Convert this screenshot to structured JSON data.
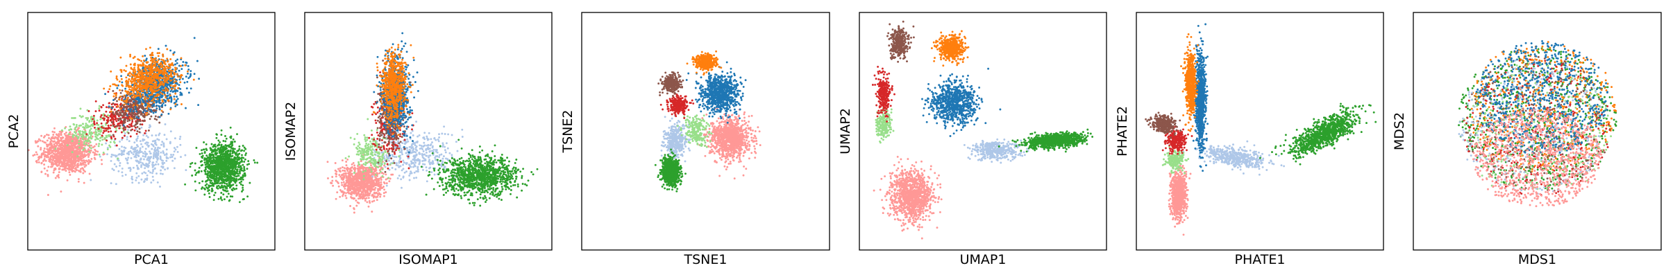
{
  "figure": {
    "palette": {
      "tab-blue": "#1f77b4",
      "tab-orange": "#ff7f0e",
      "tab-green": "#2ca02c",
      "tab-red": "#d62728",
      "tab-brown": "#8c564b",
      "light-green": "#98df8a",
      "light-blue": "#aec7e8",
      "pink": "#ff9896"
    }
  },
  "chart_data": [
    {
      "type": "scatter",
      "xlabel": "PCA1",
      "ylabel": "PCA2",
      "xlim": [
        0,
        10
      ],
      "ylim": [
        0,
        10
      ],
      "grid": false,
      "legend": "none",
      "ticks": "none",
      "series": [
        {
          "color": "#ff9896",
          "n": 1100,
          "center": [
            1.6,
            4.1
          ],
          "spread": [
            1.0,
            0.85
          ],
          "rot": 0
        },
        {
          "color": "#aec7e8",
          "n": 350,
          "center": [
            4.8,
            4.0
          ],
          "spread": [
            1.4,
            1.0
          ],
          "rot": 0
        },
        {
          "color": "#98df8a",
          "n": 220,
          "center": [
            2.6,
            5.0
          ],
          "spread": [
            1.0,
            0.8
          ],
          "rot": 0
        },
        {
          "color": "#d62728",
          "n": 240,
          "center": [
            3.7,
            5.6
          ],
          "spread": [
            1.0,
            0.8
          ],
          "rot": 25
        },
        {
          "color": "#8c564b",
          "n": 340,
          "center": [
            4.4,
            6.0
          ],
          "spread": [
            1.0,
            0.75
          ],
          "rot": 25
        },
        {
          "color": "#1f77b4",
          "n": 750,
          "center": [
            5.2,
            6.9
          ],
          "spread": [
            1.3,
            0.9
          ],
          "rot": 30
        },
        {
          "color": "#ff7f0e",
          "n": 650,
          "center": [
            4.9,
            7.2
          ],
          "spread": [
            1.2,
            0.9
          ],
          "rot": 30
        },
        {
          "color": "#2ca02c",
          "n": 1100,
          "center": [
            7.9,
            3.5
          ],
          "spread": [
            0.85,
            1.0
          ],
          "rot": 0
        }
      ]
    },
    {
      "type": "scatter",
      "xlabel": "ISOMAP1",
      "ylabel": "ISOMAP2",
      "xlim": [
        0,
        10
      ],
      "ylim": [
        0,
        10
      ],
      "grid": false,
      "legend": "none",
      "ticks": "none",
      "series": [
        {
          "color": "#ff9896",
          "n": 950,
          "center": [
            2.3,
            2.9
          ],
          "spread": [
            0.85,
            0.75
          ],
          "rot": 0
        },
        {
          "color": "#aec7e8",
          "n": 380,
          "center": [
            4.5,
            4.0
          ],
          "spread": [
            1.6,
            1.0
          ],
          "rot": 0
        },
        {
          "color": "#98df8a",
          "n": 200,
          "center": [
            2.7,
            4.0
          ],
          "spread": [
            0.7,
            0.8
          ],
          "rot": 0
        },
        {
          "color": "#d62728",
          "n": 220,
          "center": [
            3.4,
            5.3
          ],
          "spread": [
            0.6,
            1.3
          ],
          "rot": 0
        },
        {
          "color": "#8c564b",
          "n": 330,
          "center": [
            3.5,
            5.6
          ],
          "spread": [
            0.55,
            1.5
          ],
          "rot": 0
        },
        {
          "color": "#1f77b4",
          "n": 700,
          "center": [
            3.7,
            6.6
          ],
          "spread": [
            0.55,
            1.6
          ],
          "rot": 0
        },
        {
          "color": "#ff7f0e",
          "n": 620,
          "center": [
            3.6,
            6.9
          ],
          "spread": [
            0.5,
            1.4
          ],
          "rot": 0
        },
        {
          "color": "#2ca02c",
          "n": 1100,
          "center": [
            7.1,
            3.1
          ],
          "spread": [
            1.5,
            0.8
          ],
          "rot": 0
        }
      ]
    },
    {
      "type": "scatter",
      "xlabel": "TSNE1",
      "ylabel": "TSNE2",
      "xlim": [
        0,
        10
      ],
      "ylim": [
        0,
        10
      ],
      "grid": false,
      "legend": "none",
      "ticks": "none",
      "series": [
        {
          "color": "#ff9896",
          "n": 1000,
          "center": [
            6.0,
            4.7
          ],
          "spread": [
            0.8,
            0.85
          ],
          "rot": 0
        },
        {
          "color": "#aec7e8",
          "n": 350,
          "center": [
            3.8,
            4.6
          ],
          "spread": [
            0.45,
            0.7
          ],
          "rot": 0
        },
        {
          "color": "#98df8a",
          "n": 200,
          "center": [
            4.6,
            5.0
          ],
          "spread": [
            0.5,
            0.6
          ],
          "rot": 0
        },
        {
          "color": "#d62728",
          "n": 240,
          "center": [
            3.9,
            6.1
          ],
          "spread": [
            0.4,
            0.35
          ],
          "rot": 0
        },
        {
          "color": "#8c564b",
          "n": 320,
          "center": [
            3.6,
            7.0
          ],
          "spread": [
            0.35,
            0.35
          ],
          "rot": 0
        },
        {
          "color": "#1f77b4",
          "n": 800,
          "center": [
            5.6,
            6.6
          ],
          "spread": [
            0.75,
            0.8
          ],
          "rot": 0
        },
        {
          "color": "#ff7f0e",
          "n": 520,
          "center": [
            5.0,
            7.9
          ],
          "spread": [
            0.4,
            0.3
          ],
          "rot": 0
        },
        {
          "color": "#2ca02c",
          "n": 900,
          "center": [
            3.6,
            3.3
          ],
          "spread": [
            0.35,
            0.55
          ],
          "rot": 0
        }
      ]
    },
    {
      "type": "scatter",
      "xlabel": "UMAP1",
      "ylabel": "UMAP2",
      "xlim": [
        0,
        10
      ],
      "ylim": [
        0,
        10
      ],
      "grid": false,
      "legend": "none",
      "ticks": "none",
      "series": [
        {
          "color": "#ff9896",
          "n": 1100,
          "center": [
            2.1,
            2.3
          ],
          "spread": [
            0.85,
            1.0
          ],
          "rot": 0
        },
        {
          "color": "#aec7e8",
          "n": 380,
          "center": [
            5.5,
            4.2
          ],
          "spread": [
            1.0,
            0.4
          ],
          "rot": 0
        },
        {
          "color": "#98df8a",
          "n": 200,
          "center": [
            1.0,
            5.3
          ],
          "spread": [
            0.3,
            0.6
          ],
          "rot": 0
        },
        {
          "color": "#d62728",
          "n": 260,
          "center": [
            1.0,
            6.6
          ],
          "spread": [
            0.3,
            0.8
          ],
          "rot": 0
        },
        {
          "color": "#8c564b",
          "n": 330,
          "center": [
            1.6,
            8.7
          ],
          "spread": [
            0.35,
            0.6
          ],
          "rot": 0
        },
        {
          "color": "#1f77b4",
          "n": 800,
          "center": [
            3.8,
            6.2
          ],
          "spread": [
            0.9,
            0.9
          ],
          "rot": 0
        },
        {
          "color": "#ff7f0e",
          "n": 550,
          "center": [
            3.7,
            8.5
          ],
          "spread": [
            0.5,
            0.5
          ],
          "rot": 0
        },
        {
          "color": "#2ca02c",
          "n": 1000,
          "center": [
            7.9,
            4.6
          ],
          "spread": [
            1.1,
            0.28
          ],
          "rot": 5
        }
      ]
    },
    {
      "type": "scatter",
      "xlabel": "PHATE1",
      "ylabel": "PHATE2",
      "xlim": [
        0,
        10
      ],
      "ylim": [
        0,
        10
      ],
      "grid": false,
      "legend": "none",
      "ticks": "none",
      "series": [
        {
          "color": "#ff9896",
          "n": 800,
          "center": [
            1.7,
            2.3
          ],
          "spread": [
            0.3,
            1.0
          ],
          "rot": 0
        },
        {
          "color": "#aec7e8",
          "n": 450,
          "center": [
            4.0,
            3.9
          ],
          "spread": [
            1.3,
            0.4
          ],
          "rot": -10
        },
        {
          "color": "#98df8a",
          "n": 200,
          "center": [
            1.6,
            3.8
          ],
          "spread": [
            0.35,
            0.4
          ],
          "rot": 0
        },
        {
          "color": "#d62728",
          "n": 240,
          "center": [
            1.6,
            4.6
          ],
          "spread": [
            0.35,
            0.45
          ],
          "rot": 0
        },
        {
          "color": "#8c564b",
          "n": 330,
          "center": [
            1.1,
            5.3
          ],
          "spread": [
            0.5,
            0.35
          ],
          "rot": -20
        },
        {
          "color": "#1f77b4",
          "n": 850,
          "center": [
            2.6,
            6.3
          ],
          "spread": [
            0.2,
            1.9
          ],
          "rot": 0
        },
        {
          "color": "#ff7f0e",
          "n": 550,
          "center": [
            2.2,
            7.0
          ],
          "spread": [
            0.2,
            1.3
          ],
          "rot": 0
        },
        {
          "color": "#2ca02c",
          "n": 1000,
          "center": [
            7.6,
            4.9
          ],
          "spread": [
            1.5,
            0.5
          ],
          "rot": 30
        }
      ]
    },
    {
      "type": "scatter",
      "xlabel": "MDS1",
      "ylabel": "MDS2",
      "xlim": [
        0,
        10
      ],
      "ylim": [
        0,
        10
      ],
      "grid": false,
      "legend": "none",
      "ticks": "none",
      "series": [
        {
          "color": "#2ca02c",
          "n": 700,
          "center": [
            5.0,
            5.5
          ],
          "spread": [
            3.2,
            3.0
          ],
          "rot": 0,
          "disc": true
        },
        {
          "color": "#ff7f0e",
          "n": 500,
          "center": [
            5.2,
            6.0
          ],
          "spread": [
            3.0,
            2.8
          ],
          "rot": 0,
          "disc": true
        },
        {
          "color": "#8c564b",
          "n": 280,
          "center": [
            5.0,
            5.3
          ],
          "spread": [
            3.0,
            2.9
          ],
          "rot": 0,
          "disc": true
        },
        {
          "color": "#d62728",
          "n": 260,
          "center": [
            5.0,
            5.2
          ],
          "spread": [
            3.0,
            2.9
          ],
          "rot": 0,
          "disc": true
        },
        {
          "color": "#98df8a",
          "n": 220,
          "center": [
            5.0,
            5.0
          ],
          "spread": [
            3.0,
            2.9
          ],
          "rot": 0,
          "disc": true
        },
        {
          "color": "#aec7e8",
          "n": 350,
          "center": [
            4.8,
            5.2
          ],
          "spread": [
            3.0,
            2.9
          ],
          "rot": 0,
          "disc": true
        },
        {
          "color": "#1f77b4",
          "n": 700,
          "center": [
            5.2,
            6.4
          ],
          "spread": [
            2.7,
            2.4
          ],
          "rot": 0,
          "disc": true
        },
        {
          "color": "#ff9896",
          "n": 900,
          "center": [
            5.0,
            3.9
          ],
          "spread": [
            2.6,
            2.1
          ],
          "rot": 0,
          "disc": true
        }
      ]
    }
  ]
}
